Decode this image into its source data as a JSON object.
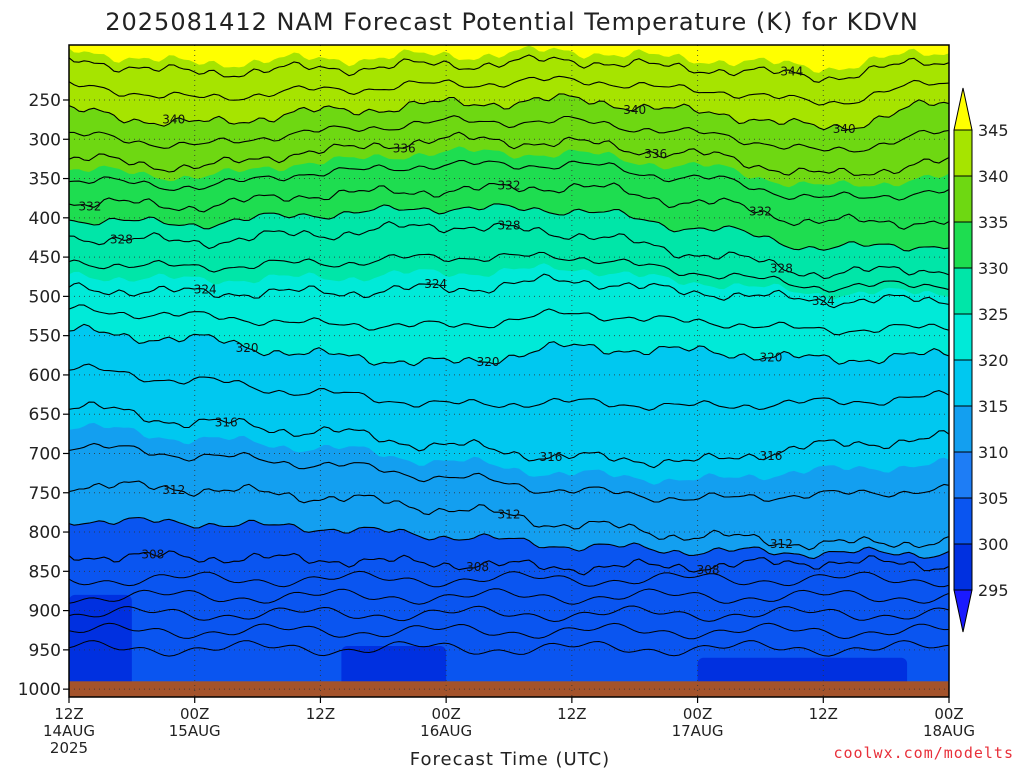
{
  "chart_data": {
    "type": "heatmap",
    "title": "2025081412 NAM Forecast Potential Temperature (K) for KDVN",
    "xlabel": "Forecast Time (UTC)",
    "credit": "coolwx.com/modelts",
    "y_scale": "pressure (hPa), inverted",
    "ylim": [
      180,
      1010
    ],
    "yticks": [
      250,
      300,
      350,
      400,
      450,
      500,
      550,
      600,
      650,
      700,
      750,
      800,
      850,
      900,
      950,
      1000
    ],
    "x_hours": [
      0,
      12,
      24,
      36,
      48,
      60,
      72,
      84
    ],
    "xticks": [
      {
        "hour": 0,
        "label": "12Z",
        "sub": "14AUG",
        "sub2": "2025"
      },
      {
        "hour": 12,
        "label": "00Z",
        "sub": "15AUG",
        "sub2": ""
      },
      {
        "hour": 24,
        "label": "12Z",
        "sub": "",
        "sub2": ""
      },
      {
        "hour": 36,
        "label": "00Z",
        "sub": "16AUG",
        "sub2": ""
      },
      {
        "hour": 48,
        "label": "12Z",
        "sub": "",
        "sub2": ""
      },
      {
        "hour": 60,
        "label": "00Z",
        "sub": "17AUG",
        "sub2": ""
      },
      {
        "hour": 72,
        "label": "12Z",
        "sub": "",
        "sub2": ""
      },
      {
        "hour": 84,
        "label": "00Z",
        "sub": "18AUG",
        "sub2": ""
      }
    ],
    "colorbar": {
      "levels": [
        295,
        300,
        305,
        310,
        315,
        320,
        325,
        330,
        335,
        340,
        345
      ],
      "labels": [
        "295",
        "300",
        "305",
        "310",
        "315",
        "320",
        "325",
        "330",
        "335",
        "340",
        "345"
      ],
      "colors": [
        "#1a1aff",
        "#0030e0",
        "#0a55f0",
        "#1e7df5",
        "#139ff0",
        "#00c8f0",
        "#00ead8",
        "#00e6a8",
        "#1edd50",
        "#6ed812",
        "#a6e400",
        "#ffff00"
      ]
    },
    "isentropes": [
      {
        "theta": 308,
        "p": [
          830,
          832,
          835,
          840,
          845,
          843,
          838,
          842
        ],
        "labels": [
          {
            "hour": 8,
            "text": "308"
          },
          {
            "hour": 39,
            "text": "308"
          },
          {
            "hour": 61,
            "text": "308"
          }
        ]
      },
      {
        "theta": 312,
        "p": [
          740,
          745,
          755,
          770,
          790,
          805,
          815,
          812
        ],
        "labels": [
          {
            "hour": 10,
            "text": "312"
          },
          {
            "hour": 42,
            "text": "312"
          },
          {
            "hour": 68,
            "text": "312"
          }
        ]
      },
      {
        "theta": 316,
        "p": [
          640,
          660,
          672,
          690,
          705,
          710,
          690,
          680
        ],
        "labels": [
          {
            "hour": 15,
            "text": "316"
          },
          {
            "hour": 46,
            "text": "316"
          },
          {
            "hour": 67,
            "text": "316"
          }
        ]
      },
      {
        "theta": 320,
        "p": [
          545,
          555,
          575,
          585,
          565,
          570,
          580,
          575
        ],
        "labels": [
          {
            "hour": 17,
            "text": "320"
          },
          {
            "hour": 40,
            "text": "320"
          },
          {
            "hour": 67,
            "text": "320"
          }
        ]
      },
      {
        "theta": 324,
        "p": [
          490,
          495,
          495,
          490,
          480,
          495,
          505,
          505
        ],
        "labels": [
          {
            "hour": 13,
            "text": "324"
          },
          {
            "hour": 35,
            "text": "324"
          },
          {
            "hour": 72,
            "text": "324"
          }
        ]
      },
      {
        "theta": 328,
        "p": [
          425,
          430,
          420,
          410,
          420,
          445,
          470,
          465
        ],
        "labels": [
          {
            "hour": 5,
            "text": "328"
          },
          {
            "hour": 42,
            "text": "328"
          },
          {
            "hour": 68,
            "text": "328"
          }
        ]
      },
      {
        "theta": 332,
        "p": [
          380,
          385,
          370,
          365,
          360,
          380,
          405,
          405
        ],
        "labels": [
          {
            "hour": 2,
            "text": "332"
          },
          {
            "hour": 42,
            "text": "332"
          },
          {
            "hour": 66,
            "text": "332"
          }
        ]
      },
      {
        "theta": 336,
        "p": [
          325,
          335,
          315,
          300,
          305,
          320,
          345,
          330
        ],
        "labels": [
          {
            "hour": 32,
            "text": "336"
          },
          {
            "hour": 56,
            "text": "336"
          }
        ]
      },
      {
        "theta": 340,
        "p": [
          265,
          280,
          265,
          255,
          250,
          265,
          285,
          255
        ],
        "labels": [
          {
            "hour": 10,
            "text": "340"
          },
          {
            "hour": 54,
            "text": "340"
          },
          {
            "hour": 74,
            "text": "340"
          }
        ]
      },
      {
        "theta": 344,
        "p": [
          200,
          215,
          210,
          205,
          200,
          210,
          220,
          200
        ],
        "labels": [
          {
            "hour": 69,
            "text": "344"
          }
        ]
      }
    ]
  }
}
